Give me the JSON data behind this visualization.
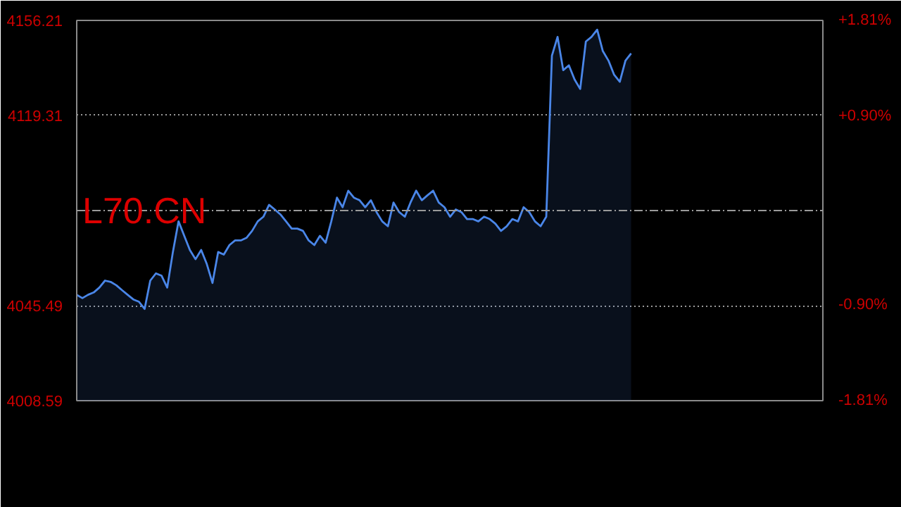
{
  "chart_data": {
    "type": "area",
    "title": "L70.CN",
    "categories": [
      null,
      null,
      null,
      null,
      null,
      null,
      null,
      null,
      null,
      null,
      null,
      null,
      null,
      null,
      null,
      null,
      null,
      null,
      null,
      null,
      null,
      null,
      null,
      null,
      null,
      null,
      null,
      null,
      null,
      null,
      null,
      null,
      null,
      null,
      null,
      null,
      null,
      null,
      null,
      null,
      null,
      null,
      null,
      null,
      null,
      null,
      null,
      null,
      null,
      null,
      null,
      null,
      null,
      null,
      null,
      null,
      null,
      null,
      null,
      null,
      null,
      null,
      null,
      null,
      null,
      null,
      null,
      null,
      null,
      null,
      null,
      null,
      null,
      null,
      null,
      null,
      null,
      null,
      null,
      null,
      null,
      null,
      null,
      null,
      null,
      null,
      null,
      null,
      null,
      null,
      null,
      null,
      null,
      null,
      null,
      null,
      null,
      null,
      null
    ],
    "series": [
      {
        "color": "#4a86e8",
        "values": [
          4049.7,
          4048.4,
          4049.7,
          4050.6,
          4052.5,
          4055.2,
          4054.7,
          4053.4,
          4051.5,
          4049.7,
          4047.9,
          4047.0,
          4044.2,
          4055.2,
          4058.0,
          4057.1,
          4052.5,
          4066.3,
          4078.2,
          4072.6,
          4067.1,
          4063.5,
          4067.1,
          4061.6,
          4054.3,
          4066.3,
          4065.3,
          4069.0,
          4070.8,
          4070.8,
          4071.8,
          4074.5,
          4078.2,
          4080.0,
          4084.6,
          4082.8,
          4080.9,
          4078.2,
          4075.4,
          4075.4,
          4074.5,
          4070.8,
          4069.0,
          4072.6,
          4069.9,
          4078.2,
          4087.4,
          4083.7,
          4090.1,
          4087.4,
          4086.4,
          4083.7,
          4086.4,
          4081.8,
          4078.2,
          4076.3,
          4085.5,
          4081.8,
          4080.0,
          4085.5,
          4090.1,
          4086.4,
          4088.3,
          4090.1,
          4085.5,
          4083.7,
          4080.0,
          4082.8,
          4081.8,
          4079.1,
          4079.1,
          4078.2,
          4080.0,
          4079.1,
          4077.3,
          4074.5,
          4076.3,
          4079.1,
          4078.2,
          4083.7,
          4081.8,
          4078.2,
          4076.3,
          4080.0,
          4142.5,
          4149.8,
          4136.9,
          4138.8,
          4133.3,
          4129.6,
          4148.0,
          4149.8,
          4152.6,
          4144.3,
          4140.6,
          4135.1,
          4132.4,
          4140.6,
          4143.4
        ]
      }
    ],
    "ylim": [
      4008.59,
      4156.21
    ],
    "yticks": [
      4008.59,
      4045.49,
      4119.31,
      4156.21
    ],
    "y2lim": [
      -1.81,
      1.81
    ],
    "y2ticks": [
      {
        "value": -1.81,
        "label": "-1.81%"
      },
      {
        "value": -0.9,
        "label": "-0.90%"
      },
      {
        "value": 0.9,
        "label": "+0.90%"
      },
      {
        "value": 1.81,
        "label": "+1.81%"
      }
    ],
    "ref_lines": [
      {
        "axis": "y",
        "value": 4082.4,
        "label": null,
        "color": "#9a9a9a",
        "line_style": "dashdot"
      }
    ],
    "grid": "y",
    "marker": "none",
    "line_style": "solid"
  }
}
